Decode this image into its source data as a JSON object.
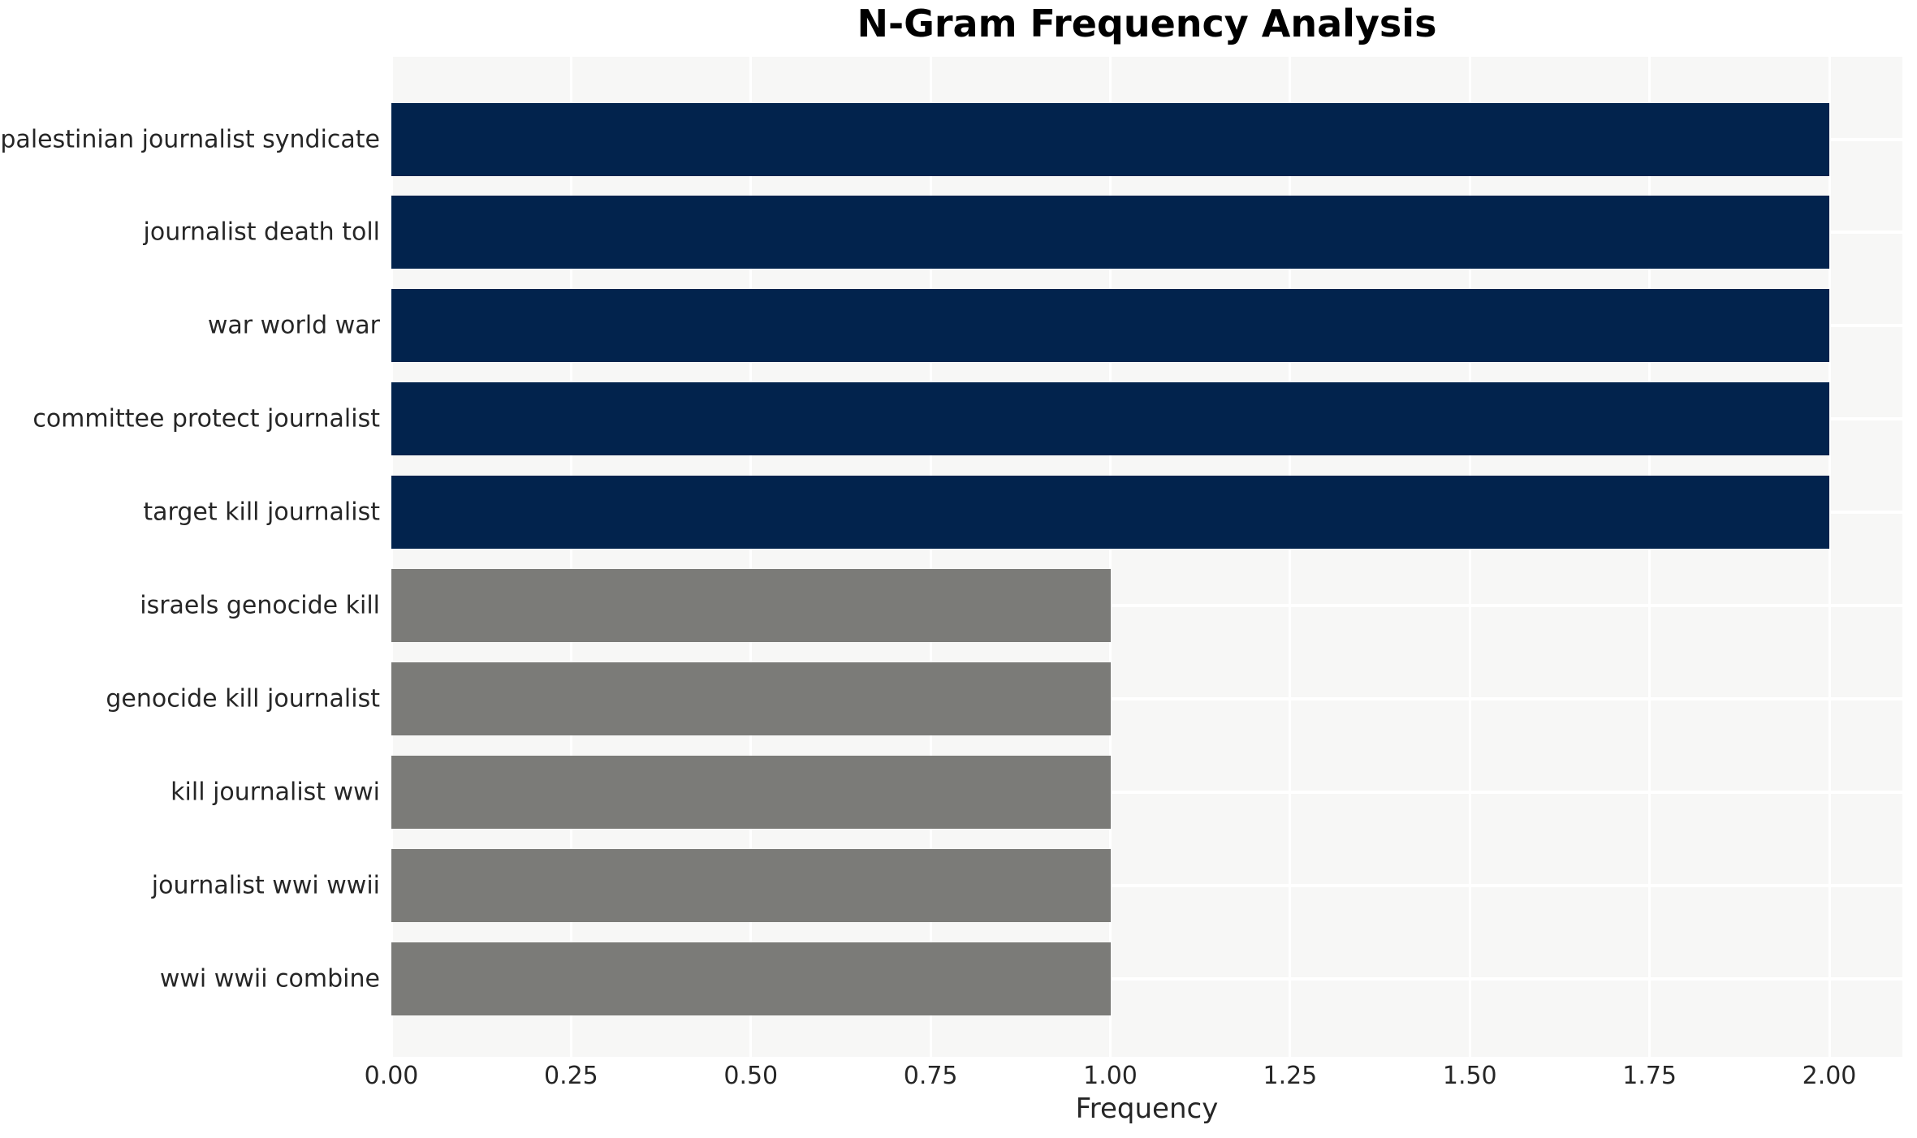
{
  "chart_data": {
    "type": "bar",
    "orientation": "horizontal",
    "title": "N-Gram Frequency Analysis",
    "xlabel": "Frequency",
    "ylabel": "",
    "categories": [
      "palestinian journalist syndicate",
      "journalist death toll",
      "war world war",
      "committee protect journalist",
      "target kill journalist",
      "israels genocide kill",
      "genocide kill journalist",
      "kill journalist wwi",
      "journalist wwi wwii",
      "wwi wwii combine"
    ],
    "values": [
      2.0,
      2.0,
      2.0,
      2.0,
      2.0,
      1.0,
      1.0,
      1.0,
      1.0,
      1.0
    ],
    "bar_colors": [
      "#02234d",
      "#02234d",
      "#02234d",
      "#02234d",
      "#02234d",
      "#7b7b78",
      "#7b7b78",
      "#7b7b78",
      "#7b7b78",
      "#7b7b78"
    ],
    "xlim": [
      0,
      2.0
    ],
    "xticks": [
      "0.00",
      "0.25",
      "0.50",
      "0.75",
      "1.00",
      "1.25",
      "1.50",
      "1.75",
      "2.00"
    ],
    "xtick_values": [
      0,
      0.25,
      0.5,
      0.75,
      1.0,
      1.25,
      1.5,
      1.75,
      2.0
    ],
    "grid": true,
    "legend": false
  },
  "styles": {
    "plot_background": "#f7f7f6",
    "grid_color": "#ffffff",
    "bar_color_high": "#02234d",
    "bar_color_low": "#7b7b78",
    "text_color": "#262626",
    "title_color": "#000000",
    "page_background": "#ffffff"
  }
}
